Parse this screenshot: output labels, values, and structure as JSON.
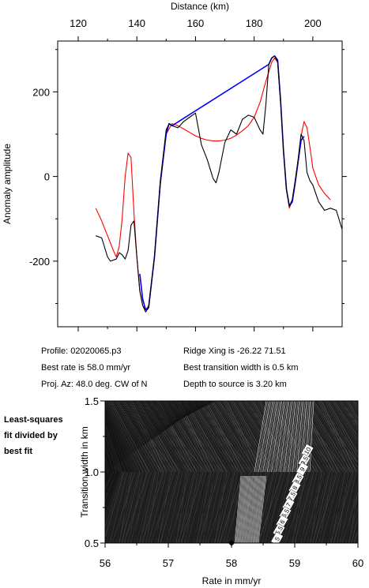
{
  "chart_data": [
    {
      "type": "line",
      "xlabel": "Distance (km)",
      "ylabel": "Anomaly amplitude",
      "xlim": [
        113,
        210
      ],
      "ylim": [
        -355,
        320
      ],
      "x_ticks": [
        120,
        140,
        160,
        180,
        200
      ],
      "y_ticks": [
        -200,
        0,
        200
      ],
      "grid": false,
      "series": [
        {
          "color": "#000000",
          "x": [
            126,
            128,
            130,
            131,
            133,
            134,
            135,
            136,
            137,
            138,
            139,
            140,
            141,
            142,
            143,
            144,
            146,
            148,
            150,
            151,
            152,
            154,
            156,
            158,
            160,
            162,
            164,
            166,
            167,
            168,
            170,
            172,
            174,
            176,
            178,
            180,
            182,
            183,
            184,
            185,
            186,
            187,
            188,
            189,
            190,
            191,
            192,
            193,
            194,
            195,
            196,
            197,
            198,
            199,
            200,
            202,
            204,
            206,
            208,
            210
          ],
          "y": [
            -140,
            -145,
            -190,
            -200,
            -195,
            -180,
            -185,
            -195,
            -175,
            -115,
            -105,
            -190,
            -270,
            -305,
            -320,
            -310,
            -190,
            -10,
            110,
            125,
            120,
            115,
            130,
            140,
            150,
            75,
            40,
            -5,
            -15,
            10,
            80,
            110,
            100,
            135,
            145,
            140,
            110,
            100,
            170,
            265,
            280,
            285,
            270,
            175,
            60,
            -30,
            -70,
            -55,
            -10,
            40,
            100,
            85,
            10,
            -10,
            -20,
            -60,
            -80,
            -75,
            -80,
            -125
          ]
        },
        {
          "color": "#0000ff",
          "x": [
            141,
            142,
            143,
            144,
            146,
            148,
            150,
            151,
            152,
            185,
            186,
            187,
            188,
            189,
            190,
            191,
            192,
            193,
            194,
            195,
            196,
            197
          ],
          "y": [
            -230,
            -290,
            -315,
            -310,
            -190,
            -15,
            100,
            125,
            120,
            265,
            280,
            285,
            275,
            180,
            60,
            -30,
            -70,
            -60,
            -15,
            35,
            85,
            95
          ]
        },
        {
          "color": "#ff0000",
          "x": [
            126,
            128,
            130,
            132,
            133,
            134,
            135,
            136,
            137,
            138,
            139,
            140,
            141,
            142,
            143,
            144,
            146,
            148,
            150,
            152,
            154,
            156,
            158,
            160,
            162,
            164,
            166,
            168,
            170,
            172,
            174,
            176,
            178,
            180,
            182,
            184,
            186,
            187,
            188,
            189,
            190,
            191,
            192,
            193,
            194,
            195,
            196,
            197,
            198,
            199,
            200,
            202,
            204,
            206
          ],
          "y": [
            -75,
            -105,
            -140,
            -175,
            -190,
            -165,
            -100,
            0,
            55,
            45,
            -85,
            -190,
            -270,
            -305,
            -315,
            -305,
            -190,
            -20,
            100,
            125,
            120,
            112,
            104,
            96,
            90,
            86,
            84,
            84,
            86,
            90,
            98,
            108,
            120,
            140,
            175,
            225,
            270,
            280,
            270,
            180,
            60,
            -30,
            -75,
            -55,
            -10,
            40,
            95,
            130,
            115,
            70,
            20,
            -20,
            -40,
            -55
          ]
        }
      ]
    },
    {
      "type": "heatmap",
      "xlabel": "Rate in mm/yr",
      "ylabel": "Transition width in km",
      "xlim": [
        56,
        60
      ],
      "ylim": [
        0.5,
        1.5
      ],
      "x_ticks": [
        56,
        57,
        58,
        59,
        60
      ],
      "y_ticks": [
        0.5,
        1.0,
        1.5
      ],
      "best_fit": {
        "x": 58.0,
        "y": 0.5
      },
      "contour_labels": [
        {
          "text": "10",
          "x": 59.2,
          "y": 1.15
        },
        {
          "text": "9.5",
          "x": 59.15,
          "y": 1.08
        },
        {
          "text": "9",
          "x": 59.12,
          "y": 1.02
        },
        {
          "text": "8.5",
          "x": 59.05,
          "y": 0.95
        },
        {
          "text": "8",
          "x": 59.0,
          "y": 0.89
        },
        {
          "text": "7.5",
          "x": 58.95,
          "y": 0.83
        },
        {
          "text": "7",
          "x": 58.9,
          "y": 0.77
        },
        {
          "text": "6.5",
          "x": 58.85,
          "y": 0.71
        },
        {
          "text": "6",
          "x": 58.8,
          "y": 0.65
        },
        {
          "text": "5.5",
          "x": 58.75,
          "y": 0.59
        },
        {
          "text": "5",
          "x": 58.72,
          "y": 0.53
        }
      ]
    }
  ],
  "info": {
    "profile": "Profile: 02020065.p3",
    "best_rate": "Best rate is 58.0 mm/yr",
    "proj_az": "Proj. Az: 48.0 deg. CW of N",
    "ridge_xing": "Ridge Xing is -26.22 71.51",
    "best_width": "Best transition width is 0.5 km",
    "depth": "Depth to source is   3.20 km"
  },
  "side_note": [
    "Least-squares",
    "fit divided by",
    "best fit"
  ]
}
